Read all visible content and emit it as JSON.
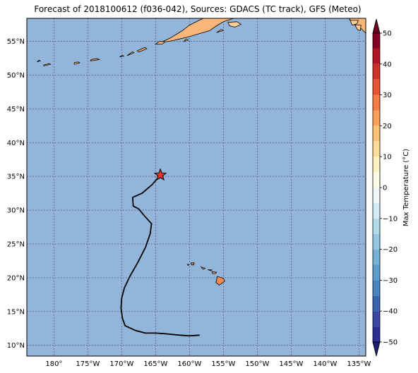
{
  "title": "Forecast of 2018100612 (f036-042), Sources: GDACS (TC track), GFS (Meteo)",
  "map": {
    "lon_range": [
      -184,
      -134
    ],
    "lat_range": [
      8.4,
      58.4
    ],
    "ocean_color": "#93b5da",
    "grid_style": "dotted",
    "lon_ticks": [
      {
        "value": -180,
        "label": "180°"
      },
      {
        "value": -175,
        "label": "175°W"
      },
      {
        "value": -170,
        "label": "170°W"
      },
      {
        "value": -165,
        "label": "165°W"
      },
      {
        "value": -160,
        "label": "160°W"
      },
      {
        "value": -155,
        "label": "155°W"
      },
      {
        "value": -150,
        "label": "150°W"
      },
      {
        "value": -145,
        "label": "145°W"
      },
      {
        "value": -140,
        "label": "140°W"
      },
      {
        "value": -135,
        "label": "135°W"
      }
    ],
    "lat_ticks": [
      {
        "value": 10,
        "label": "10°N"
      },
      {
        "value": 15,
        "label": "15°N"
      },
      {
        "value": 20,
        "label": "20°N"
      },
      {
        "value": 25,
        "label": "25°N"
      },
      {
        "value": 30,
        "label": "30°N"
      },
      {
        "value": 35,
        "label": "35°N"
      },
      {
        "value": 40,
        "label": "40°N"
      },
      {
        "value": 45,
        "label": "45°N"
      },
      {
        "value": 50,
        "label": "50°N"
      },
      {
        "value": 55,
        "label": "55°N"
      }
    ],
    "track": [
      [
        -158.5,
        11.5
      ],
      [
        -160,
        11.4
      ],
      [
        -161.5,
        11.5
      ],
      [
        -163.5,
        11.7
      ],
      [
        -165,
        11.8
      ],
      [
        -166.5,
        11.8
      ],
      [
        -168,
        12.2
      ],
      [
        -169.5,
        12.9
      ],
      [
        -169.9,
        14
      ],
      [
        -170.1,
        15.5
      ],
      [
        -170.0,
        17
      ],
      [
        -169.6,
        18.5
      ],
      [
        -168.8,
        20.2
      ],
      [
        -167.6,
        22.3
      ],
      [
        -166.5,
        24.5
      ],
      [
        -165.8,
        26.5
      ],
      [
        -165.6,
        28
      ],
      [
        -166.6,
        29.1
      ],
      [
        -167.5,
        30.2
      ],
      [
        -168.3,
        30.6
      ],
      [
        -168.4,
        31.9
      ],
      [
        -167.0,
        32.5
      ],
      [
        -165.5,
        33.8
      ],
      [
        -164.3,
        35.2
      ]
    ],
    "storm_position": [
      -164.3,
      35.2
    ],
    "storm_color": "#e8332a",
    "land": [
      {
        "name": "hawaii-big-island",
        "color": "#f08a55",
        "points": [
          [
            -155.9,
            20.2
          ],
          [
            -155.0,
            19.9
          ],
          [
            -154.8,
            19.5
          ],
          [
            -155.6,
            18.9
          ],
          [
            -156.1,
            19.3
          ]
        ]
      },
      {
        "name": "maui",
        "color": "#f5a36b",
        "points": [
          [
            -156.7,
            20.9
          ],
          [
            -156.0,
            20.8
          ],
          [
            -156.2,
            20.6
          ],
          [
            -156.6,
            20.6
          ]
        ]
      },
      {
        "name": "molokai",
        "color": "#f5a36b",
        "points": [
          [
            -157.3,
            21.2
          ],
          [
            -156.7,
            21.15
          ],
          [
            -156.9,
            21.05
          ]
        ]
      },
      {
        "name": "oahu",
        "color": "#f5a36b",
        "points": [
          [
            -158.3,
            21.6
          ],
          [
            -157.7,
            21.4
          ],
          [
            -158.0,
            21.25
          ]
        ]
      },
      {
        "name": "kauai",
        "color": "#f08a55",
        "points": [
          [
            -159.8,
            22.2
          ],
          [
            -159.3,
            22.2
          ],
          [
            -159.4,
            21.9
          ],
          [
            -159.7,
            21.9
          ]
        ]
      },
      {
        "name": "niihau",
        "color": "#f5c08a",
        "points": [
          [
            -160.3,
            22.0
          ],
          [
            -160.1,
            21.95
          ],
          [
            -160.2,
            21.8
          ]
        ]
      },
      {
        "name": "alaska-peninsula",
        "color": "#fbb77a",
        "points": [
          [
            -162.5,
            55.1
          ],
          [
            -160,
            55.7
          ],
          [
            -157,
            56.6
          ],
          [
            -156,
            57.3
          ],
          [
            -155,
            57.9
          ],
          [
            -153.5,
            58.4
          ],
          [
            -158,
            58.4
          ],
          [
            -160,
            57.4
          ],
          [
            -161,
            56.6
          ],
          [
            -162.8,
            55.5
          ],
          [
            -164.3,
            54.8
          ]
        ]
      },
      {
        "name": "kodiak",
        "color": "#fbcf95",
        "points": [
          [
            -154.3,
            57.8
          ],
          [
            -153,
            57.9
          ],
          [
            -152.4,
            57.5
          ],
          [
            -153.3,
            57.1
          ],
          [
            -154.1,
            57.3
          ]
        ]
      },
      {
        "name": "unimak",
        "color": "#fbb77a",
        "points": [
          [
            -165,
            54.6
          ],
          [
            -164,
            54.6
          ],
          [
            -163.6,
            54.95
          ],
          [
            -164.4,
            55.0
          ]
        ]
      },
      {
        "name": "unalaska",
        "color": "#f5a36b",
        "points": [
          [
            -167.5,
            53.4
          ],
          [
            -166.3,
            53.9
          ],
          [
            -166.6,
            54.1
          ],
          [
            -167.7,
            53.6
          ]
        ]
      },
      {
        "name": "umnak",
        "color": "#fbcf95",
        "points": [
          [
            -169.2,
            52.9
          ],
          [
            -168.2,
            53.3
          ],
          [
            -168.4,
            53.45
          ]
        ]
      },
      {
        "name": "islands-of-four-mountains",
        "color": "#fbb77a",
        "points": [
          [
            -170.3,
            52.7
          ],
          [
            -169.7,
            52.8
          ],
          [
            -169.9,
            52.95
          ]
        ]
      },
      {
        "name": "atka",
        "color": "#f5a36b",
        "points": [
          [
            -174.6,
            52.1
          ],
          [
            -173.3,
            52.3
          ],
          [
            -173.6,
            52.45
          ],
          [
            -174.5,
            52.3
          ]
        ]
      },
      {
        "name": "adak",
        "color": "#fbcf95",
        "points": [
          [
            -177,
            51.6
          ],
          [
            -176.2,
            51.8
          ],
          [
            -176.4,
            51.95
          ],
          [
            -177.0,
            51.85
          ]
        ]
      },
      {
        "name": "kiska",
        "color": "#fbcf95",
        "points": [
          [
            -182.5,
            51.95
          ],
          [
            -182.0,
            52.1
          ],
          [
            -182.2,
            52.2
          ]
        ]
      },
      {
        "name": "attu",
        "color": "#fbcf95",
        "points": [
          [
            -187,
            52.8
          ],
          [
            -186.3,
            52.95
          ],
          [
            -186.4,
            53.05
          ]
        ]
      },
      {
        "name": "amchitka",
        "color": "#fbcf95",
        "points": [
          [
            -181.5,
            51.35
          ],
          [
            -180.5,
            51.6
          ],
          [
            -180.7,
            51.7
          ],
          [
            -181.5,
            51.5
          ]
        ]
      },
      {
        "name": "kodiak-shelf",
        "color": "#fbb77a",
        "points": [
          [
            -156,
            56.3
          ],
          [
            -155.0,
            56.6
          ],
          [
            -155.3,
            56.75
          ]
        ]
      },
      {
        "name": "shumagin",
        "color": "#fbcf95",
        "points": [
          [
            -160.8,
            55.0
          ],
          [
            -160.2,
            55.2
          ],
          [
            -160.5,
            55.35
          ]
        ]
      },
      {
        "name": "alaska-panhandle",
        "color": "#fbb77a",
        "points": [
          [
            -136.5,
            58.4
          ],
          [
            -134,
            58.4
          ],
          [
            -134,
            56.2
          ],
          [
            -134.8,
            57.0
          ],
          [
            -135.8,
            57.6
          ]
        ]
      },
      {
        "name": "chichagof",
        "color": "#fbcf95",
        "points": [
          [
            -136.3,
            58.1
          ],
          [
            -135.1,
            58.1
          ],
          [
            -135.3,
            57.6
          ],
          [
            -136,
            57.4
          ]
        ]
      },
      {
        "name": "baranof",
        "color": "#fbcf95",
        "points": [
          [
            -135.6,
            57.4
          ],
          [
            -134.7,
            57.4
          ],
          [
            -134.8,
            56.6
          ],
          [
            -135.2,
            56.7
          ]
        ]
      }
    ]
  },
  "colorbar": {
    "label": "Max Temperature (°C)",
    "min": -50,
    "max": 50,
    "ticks": [
      {
        "value": 50,
        "label": "50"
      },
      {
        "value": 40,
        "label": "40"
      },
      {
        "value": 30,
        "label": "30"
      },
      {
        "value": 20,
        "label": "20"
      },
      {
        "value": 10,
        "label": "10"
      },
      {
        "value": 0,
        "label": "0"
      },
      {
        "value": -10,
        "label": "−10"
      },
      {
        "value": -20,
        "label": "−20"
      },
      {
        "value": -30,
        "label": "−30"
      },
      {
        "value": -40,
        "label": "−40"
      },
      {
        "value": -50,
        "label": "−50"
      }
    ],
    "bins": [
      {
        "from": -50,
        "to": -45,
        "color": "#2c2d93"
      },
      {
        "from": -45,
        "to": -40,
        "color": "#3a48a3"
      },
      {
        "from": -40,
        "to": -35,
        "color": "#3a64ac"
      },
      {
        "from": -35,
        "to": -30,
        "color": "#4a84be"
      },
      {
        "from": -30,
        "to": -25,
        "color": "#5c9ccb"
      },
      {
        "from": -25,
        "to": -20,
        "color": "#76b1d6"
      },
      {
        "from": -20,
        "to": -15,
        "color": "#94c7e2"
      },
      {
        "from": -15,
        "to": -10,
        "color": "#b3dbec"
      },
      {
        "from": -10,
        "to": -5,
        "color": "#d4ecf3"
      },
      {
        "from": -5,
        "to": 0,
        "color": "#eef8f9"
      },
      {
        "from": 0,
        "to": 5,
        "color": "#fdfde6"
      },
      {
        "from": 5,
        "to": 10,
        "color": "#fdf2c0"
      },
      {
        "from": 10,
        "to": 15,
        "color": "#fedd98"
      },
      {
        "from": 15,
        "to": 20,
        "color": "#fdc27a"
      },
      {
        "from": 20,
        "to": 25,
        "color": "#f8a25d"
      },
      {
        "from": 25,
        "to": 30,
        "color": "#f37b45"
      },
      {
        "from": 30,
        "to": 35,
        "color": "#e65434"
      },
      {
        "from": 35,
        "to": 40,
        "color": "#d02f28"
      },
      {
        "from": 40,
        "to": 45,
        "color": "#b01526"
      },
      {
        "from": 45,
        "to": 50,
        "color": "#850022"
      }
    ],
    "under_color": "#1c1f73",
    "over_color": "#6a001b"
  }
}
